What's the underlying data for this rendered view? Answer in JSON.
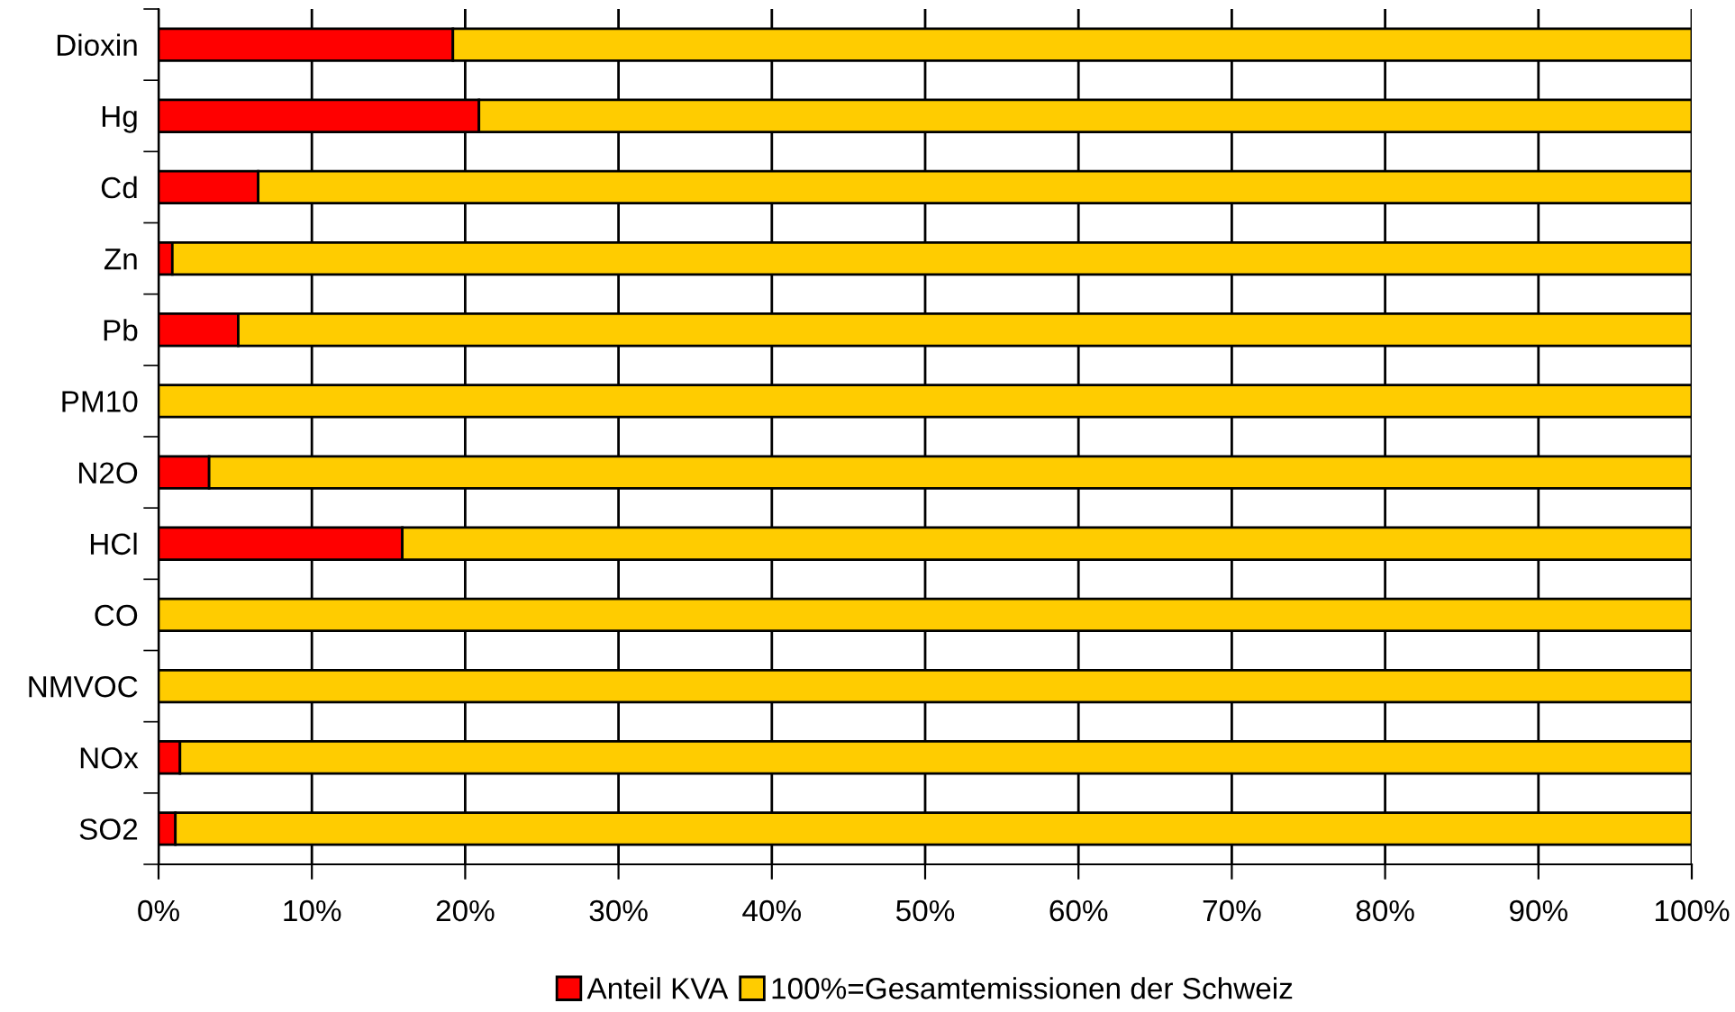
{
  "chart_data": {
    "type": "bar",
    "orientation": "horizontal",
    "stacked": true,
    "categories": [
      "Dioxin",
      "Hg",
      "Cd",
      "Zn",
      "Pb",
      "PM10",
      "N2O",
      "HCl",
      "CO",
      "NMVOC",
      "NOx",
      "SO2"
    ],
    "series": [
      {
        "name": "Anteil KVA",
        "color": "#ff0000",
        "values": [
          19.2,
          20.9,
          6.5,
          0.9,
          5.2,
          null,
          3.3,
          15.9,
          null,
          null,
          1.4,
          1.1
        ]
      },
      {
        "name": "100%=Gesamtemissionen der Schweiz",
        "color": "#ffcc00",
        "values": [
          80.8,
          79.1,
          93.5,
          99.1,
          94.8,
          100,
          96.7,
          84.1,
          100,
          100,
          98.6,
          98.9
        ]
      }
    ],
    "xlim": [
      0,
      100
    ],
    "xticks": [
      {
        "value": 0,
        "label": "0%"
      },
      {
        "value": 10,
        "label": "10%"
      },
      {
        "value": 20,
        "label": "20%"
      },
      {
        "value": 30,
        "label": "30%"
      },
      {
        "value": 40,
        "label": "40%"
      },
      {
        "value": 50,
        "label": "50%"
      },
      {
        "value": 60,
        "label": "60%"
      },
      {
        "value": 70,
        "label": "70%"
      },
      {
        "value": 80,
        "label": "80%"
      },
      {
        "value": 90,
        "label": "90%"
      },
      {
        "value": 100,
        "label": "100%"
      }
    ],
    "grid": "x",
    "legend": "bottom"
  }
}
